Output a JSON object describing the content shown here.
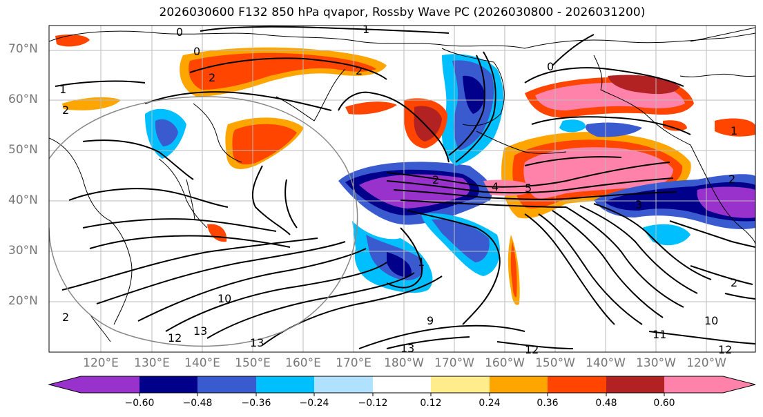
{
  "title": "2026030600 F132 850 hPa qvapor, Rossby Wave PC (2026030800 - 2026031200)",
  "lat_labels": [
    "70°N",
    "60°N",
    "50°N",
    "40°N",
    "30°N",
    "20°N"
  ],
  "lon_labels": [
    "120°E",
    "130°E",
    "140°E",
    "150°E",
    "160°E",
    "170°E",
    "180°W",
    "170°W",
    "160°W",
    "150°W",
    "140°W",
    "130°W",
    "120°W"
  ],
  "colorbar": {
    "colors": [
      "#9932CC",
      "#00008B",
      "#3A5BD0",
      "#00BFFF",
      "#B0E2FF",
      "#FFFFFF",
      "#FFEC8B",
      "#FFA500",
      "#FF4500",
      "#B22222",
      "#FF82AB"
    ],
    "ticks": [
      "−0.60",
      "−0.48",
      "−0.36",
      "−0.24",
      "−0.12",
      "0.12",
      "0.24",
      "0.36",
      "0.48",
      "0.60"
    ]
  },
  "contour_labels": [
    "0",
    "0",
    "1",
    "1",
    "2",
    "2",
    "2",
    "0",
    "2",
    "1",
    "2",
    "3",
    "4",
    "5",
    "1",
    "2",
    "10",
    "9",
    "12",
    "13",
    "13",
    "13",
    "12",
    "11",
    "12",
    "10",
    "2"
  ]
}
